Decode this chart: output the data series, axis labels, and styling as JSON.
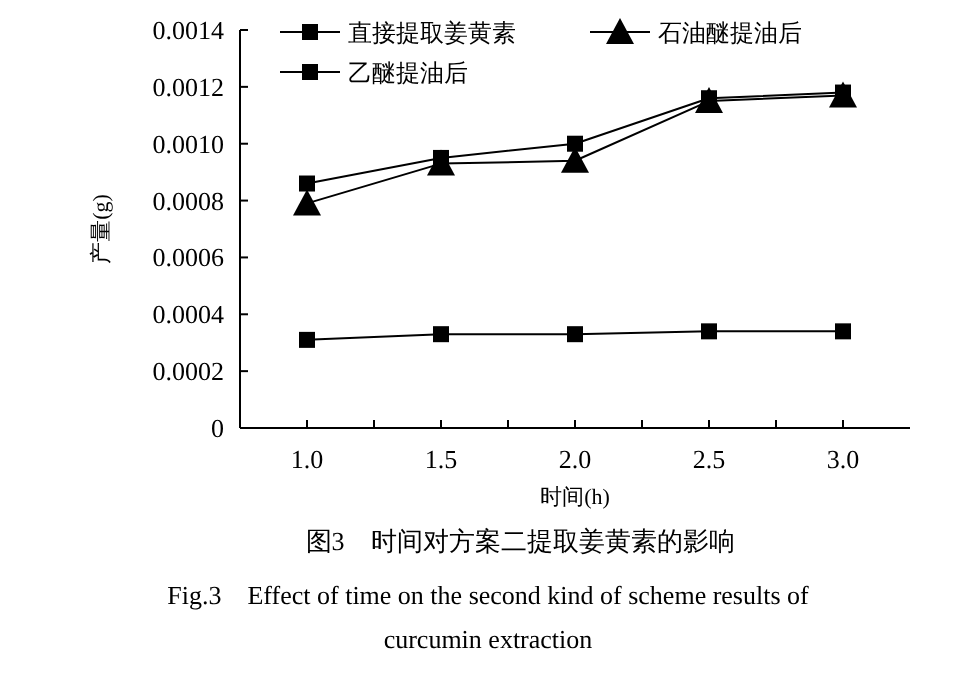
{
  "chart_data": {
    "type": "line",
    "title": "图3　时间对方案二提取姜黄素的影响",
    "subtitle": "Fig.3　Effect of time on the second kind of scheme results of curcumin extraction",
    "xlabel": "时间(h)",
    "ylabel": "产量(g)",
    "x": [
      1.0,
      1.5,
      2.0,
      2.5,
      3.0
    ],
    "series": [
      {
        "name": "直接提取姜黄素",
        "color": "#000000",
        "marker": "square",
        "values": [
          0.00031,
          0.00033,
          0.00033,
          0.00034,
          0.00034
        ]
      },
      {
        "name": "石油醚提油后",
        "color": "#000000",
        "marker": "triangle",
        "values": [
          0.00079,
          0.00093,
          0.00094,
          0.00115,
          0.00117
        ]
      },
      {
        "name": "乙醚提油后",
        "color": "#000000",
        "marker": "square",
        "values": [
          0.00086,
          0.00095,
          0.001,
          0.00116,
          0.00118
        ]
      }
    ],
    "xlim": [
      0.75,
      3.25
    ],
    "xticks": [
      {
        "value": 1.0,
        "label": "1.0"
      },
      {
        "value": 1.25,
        "label": null
      },
      {
        "value": 1.5,
        "label": "1.5"
      },
      {
        "value": 1.75,
        "label": null
      },
      {
        "value": 2.0,
        "label": "2.0"
      },
      {
        "value": 2.25,
        "label": null
      },
      {
        "value": 2.5,
        "label": "2.5"
      },
      {
        "value": 2.75,
        "label": null
      },
      {
        "value": 3.0,
        "label": "3.0"
      }
    ],
    "ylim": [
      0,
      0.0014
    ],
    "yticks": [
      0,
      {
        "value": 0.0002,
        "label": "0.0002"
      },
      {
        "value": 0.0004,
        "label": "0.0004"
      },
      {
        "value": 0.0006,
        "label": "0.0006"
      },
      {
        "value": 0.0008,
        "label": "0.0008"
      },
      {
        "value": 0.001,
        "label": "0.0010"
      },
      {
        "value": 0.0012,
        "label": "0.0012"
      },
      {
        "value": 0.0014,
        "label": "0.0014"
      }
    ],
    "legend": "top",
    "line_style": "solid",
    "grid": false
  }
}
